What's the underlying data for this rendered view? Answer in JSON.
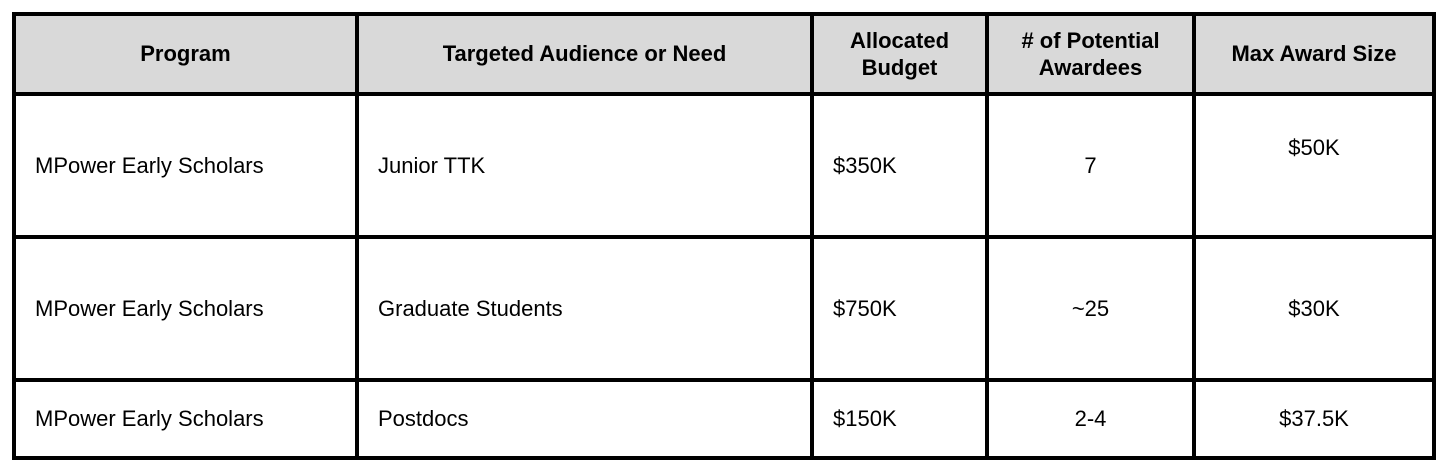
{
  "table": {
    "columns": [
      "Program",
      "Targeted Audience or Need",
      "Allocated Budget",
      "# of Potential Awardees",
      "Max Award Size"
    ],
    "rows": [
      [
        "MPower Early Scholars",
        "Junior TTK",
        "$350K",
        "7",
        "$50K"
      ],
      [
        "MPower Early Scholars",
        "Graduate Students",
        "$750K",
        "~25",
        "$30K"
      ],
      [
        "MPower Early Scholars",
        "Postdocs",
        "$150K",
        "2-4",
        "$37.5K"
      ]
    ]
  },
  "colors": {
    "header_bg": "#d9d9d9",
    "border": "#000000",
    "text": "#000000",
    "page_bg": "#ffffff"
  }
}
